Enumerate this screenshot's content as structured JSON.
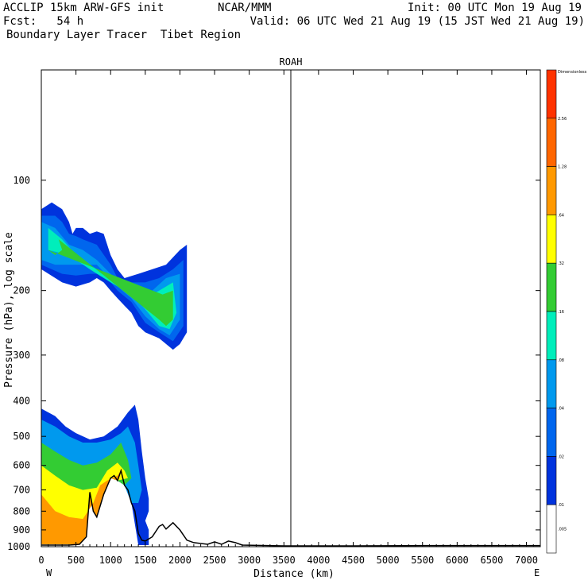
{
  "header": {
    "line1_left": "ACCLIP 15km ARW-GFS init",
    "line1_mid": "NCAR/MMM",
    "line1_right": "Init: 00 UTC Mon 19 Aug 19",
    "line2_left": "Fcst:   54 h",
    "line2_right": "Valid: 06 UTC Wed 21 Aug 19 (15 JST Wed 21 Aug 19)",
    "line3_left": "Boundary Layer Tracer  Tibet Region"
  },
  "chart_data": {
    "type": "contour",
    "title": "ROAH",
    "xlabel": "Distance (km)",
    "ylabel": "Pressure (hPa), log scale",
    "x_ticks": [
      0,
      500,
      1000,
      1500,
      2000,
      2500,
      3000,
      3500,
      4000,
      4500,
      5000,
      5500,
      6000,
      6500,
      7000
    ],
    "xlim": [
      0,
      7200
    ],
    "y_ticks": [
      100,
      200,
      300,
      400,
      500,
      600,
      700,
      800,
      900,
      1000
    ],
    "ylim": [
      1000,
      50
    ],
    "y_scale": "log",
    "left_end_label": "W",
    "right_end_label": "E",
    "vertical_line_x": 3600,
    "colorbar": {
      "top_label": "Dimensionless",
      "labels": [
        "2.56",
        "1.28",
        ".64",
        ".32",
        ".16",
        ".08",
        ".04",
        ".02",
        ".01",
        ".005"
      ],
      "colors": [
        "#ff3300",
        "#ff6600",
        "#ff9900",
        "#ffff00",
        "#33cc33",
        "#00eebb",
        "#0099ee",
        "#0066ee",
        "#0033dd",
        "#ffffff"
      ]
    },
    "terrain": [
      [
        0,
        990
      ],
      [
        400,
        990
      ],
      [
        550,
        985
      ],
      [
        650,
        940
      ],
      [
        700,
        710
      ],
      [
        750,
        800
      ],
      [
        800,
        830
      ],
      [
        900,
        720
      ],
      [
        1000,
        650
      ],
      [
        1050,
        640
      ],
      [
        1100,
        660
      ],
      [
        1150,
        620
      ],
      [
        1200,
        680
      ],
      [
        1250,
        700
      ],
      [
        1300,
        760
      ],
      [
        1350,
        800
      ],
      [
        1400,
        920
      ],
      [
        1450,
        960
      ],
      [
        1500,
        965
      ],
      [
        1600,
        940
      ],
      [
        1700,
        880
      ],
      [
        1750,
        870
      ],
      [
        1800,
        895
      ],
      [
        1900,
        860
      ],
      [
        2000,
        900
      ],
      [
        2100,
        960
      ],
      [
        2200,
        975
      ],
      [
        2400,
        985
      ],
      [
        2500,
        970
      ],
      [
        2600,
        985
      ],
      [
        2700,
        965
      ],
      [
        2800,
        975
      ],
      [
        2900,
        990
      ],
      [
        3500,
        995
      ],
      [
        4500,
        995
      ],
      [
        5500,
        993
      ],
      [
        7200,
        993
      ]
    ],
    "plumes": [
      {
        "level": ".01",
        "polygon": [
          [
            0,
            120
          ],
          [
            150,
            115
          ],
          [
            300,
            120
          ],
          [
            400,
            130
          ],
          [
            450,
            140
          ],
          [
            500,
            135
          ],
          [
            600,
            135
          ],
          [
            700,
            140
          ],
          [
            800,
            138
          ],
          [
            900,
            140
          ],
          [
            1000,
            160
          ],
          [
            1100,
            175
          ],
          [
            1200,
            185
          ],
          [
            1400,
            180
          ],
          [
            1600,
            175
          ],
          [
            1800,
            170
          ],
          [
            2000,
            155
          ],
          [
            2100,
            150
          ],
          [
            2100,
            260
          ],
          [
            2000,
            280
          ],
          [
            1900,
            290
          ],
          [
            1700,
            270
          ],
          [
            1500,
            260
          ],
          [
            1400,
            250
          ],
          [
            1300,
            230
          ],
          [
            1200,
            220
          ],
          [
            1100,
            210
          ],
          [
            1000,
            200
          ],
          [
            900,
            190
          ],
          [
            800,
            185
          ],
          [
            700,
            190
          ],
          [
            500,
            195
          ],
          [
            300,
            190
          ],
          [
            0,
            175
          ]
        ]
      },
      {
        "level": ".02",
        "polygon": [
          [
            0,
            125
          ],
          [
            200,
            125
          ],
          [
            300,
            130
          ],
          [
            400,
            140
          ],
          [
            500,
            142
          ],
          [
            600,
            145
          ],
          [
            800,
            150
          ],
          [
            1000,
            170
          ],
          [
            1100,
            185
          ],
          [
            1300,
            190
          ],
          [
            1500,
            190
          ],
          [
            1700,
            185
          ],
          [
            1900,
            175
          ],
          [
            2050,
            165
          ],
          [
            2050,
            250
          ],
          [
            1900,
            275
          ],
          [
            1700,
            260
          ],
          [
            1500,
            245
          ],
          [
            1300,
            215
          ],
          [
            1100,
            200
          ],
          [
            900,
            180
          ],
          [
            700,
            180
          ],
          [
            500,
            182
          ],
          [
            300,
            180
          ],
          [
            0,
            170
          ]
        ]
      },
      {
        "level": ".04",
        "polygon": [
          [
            0,
            130
          ],
          [
            200,
            135
          ],
          [
            400,
            150
          ],
          [
            600,
            155
          ],
          [
            800,
            165
          ],
          [
            1000,
            180
          ],
          [
            1200,
            195
          ],
          [
            1400,
            200
          ],
          [
            1600,
            200
          ],
          [
            1800,
            185
          ],
          [
            2000,
            180
          ],
          [
            2000,
            240
          ],
          [
            1850,
            265
          ],
          [
            1700,
            255
          ],
          [
            1500,
            235
          ],
          [
            1300,
            210
          ],
          [
            1100,
            195
          ],
          [
            800,
            170
          ],
          [
            500,
            170
          ],
          [
            200,
            170
          ],
          [
            0,
            165
          ]
        ]
      },
      {
        "level": ".08",
        "polygon": [
          [
            100,
            135
          ],
          [
            300,
            145
          ],
          [
            500,
            160
          ],
          [
            700,
            170
          ],
          [
            900,
            180
          ],
          [
            1200,
            200
          ],
          [
            1500,
            210
          ],
          [
            1700,
            200
          ],
          [
            1900,
            190
          ],
          [
            1950,
            230
          ],
          [
            1850,
            255
          ],
          [
            1700,
            250
          ],
          [
            1500,
            225
          ],
          [
            1300,
            205
          ],
          [
            1000,
            190
          ],
          [
            700,
            175
          ],
          [
            400,
            160
          ],
          [
            100,
            155
          ]
        ]
      },
      {
        "level": ".16",
        "polygon": [
          [
            150,
            140
          ],
          [
            250,
            145
          ],
          [
            300,
            155
          ],
          [
            200,
            160
          ],
          [
            100,
            155
          ],
          [
            1750,
            205
          ],
          [
            1900,
            200
          ],
          [
            1900,
            240
          ],
          [
            1800,
            250
          ],
          [
            1700,
            240
          ]
        ]
      },
      {
        "level": ".01",
        "polygon": [
          [
            0,
            420
          ],
          [
            200,
            440
          ],
          [
            350,
            470
          ],
          [
            500,
            490
          ],
          [
            700,
            510
          ],
          [
            900,
            500
          ],
          [
            1100,
            470
          ],
          [
            1250,
            430
          ],
          [
            1350,
            410
          ],
          [
            1400,
            450
          ],
          [
            1450,
            550
          ],
          [
            1500,
            650
          ],
          [
            1550,
            740
          ],
          [
            1550,
            800
          ],
          [
            1500,
            850
          ],
          [
            1550,
            900
          ],
          [
            1550,
            990
          ],
          [
            1400,
            990
          ],
          [
            1300,
            760
          ],
          [
            1200,
            680
          ],
          [
            1100,
            660
          ],
          [
            1000,
            650
          ],
          [
            900,
            720
          ],
          [
            800,
            830
          ],
          [
            750,
            800
          ],
          [
            700,
            710
          ],
          [
            650,
            940
          ],
          [
            550,
            985
          ],
          [
            0,
            985
          ]
        ]
      },
      {
        "level": ".04",
        "polygon": [
          [
            0,
            450
          ],
          [
            200,
            470
          ],
          [
            400,
            500
          ],
          [
            600,
            520
          ],
          [
            800,
            520
          ],
          [
            1000,
            510
          ],
          [
            1150,
            490
          ],
          [
            1250,
            470
          ],
          [
            1350,
            520
          ],
          [
            1400,
            600
          ],
          [
            1450,
            700
          ],
          [
            1400,
            760
          ],
          [
            1300,
            760
          ],
          [
            1200,
            680
          ],
          [
            1100,
            660
          ],
          [
            1000,
            650
          ],
          [
            900,
            720
          ],
          [
            800,
            830
          ],
          [
            750,
            800
          ],
          [
            700,
            710
          ],
          [
            650,
            940
          ],
          [
            550,
            985
          ],
          [
            0,
            985
          ]
        ]
      },
      {
        "level": ".16",
        "polygon": [
          [
            0,
            520
          ],
          [
            200,
            550
          ],
          [
            400,
            580
          ],
          [
            600,
            600
          ],
          [
            800,
            590
          ],
          [
            1000,
            560
          ],
          [
            1150,
            520
          ],
          [
            1250,
            580
          ],
          [
            1300,
            650
          ],
          [
            1200,
            680
          ],
          [
            1100,
            660
          ],
          [
            1000,
            650
          ],
          [
            900,
            720
          ],
          [
            800,
            830
          ],
          [
            750,
            800
          ],
          [
            700,
            710
          ],
          [
            650,
            940
          ],
          [
            550,
            985
          ],
          [
            0,
            985
          ]
        ]
      },
      {
        "level": ".32",
        "polygon": [
          [
            0,
            600
          ],
          [
            200,
            640
          ],
          [
            400,
            680
          ],
          [
            600,
            700
          ],
          [
            800,
            690
          ],
          [
            950,
            620
          ],
          [
            1100,
            590
          ],
          [
            1200,
            620
          ],
          [
            1250,
            650
          ],
          [
            1100,
            660
          ],
          [
            1000,
            650
          ],
          [
            900,
            720
          ],
          [
            800,
            830
          ],
          [
            750,
            800
          ],
          [
            700,
            710
          ],
          [
            650,
            940
          ],
          [
            550,
            985
          ],
          [
            0,
            985
          ]
        ]
      },
      {
        "level": ".64",
        "polygon": [
          [
            0,
            720
          ],
          [
            200,
            800
          ],
          [
            400,
            830
          ],
          [
            600,
            840
          ],
          [
            750,
            760
          ],
          [
            850,
            680
          ],
          [
            950,
            660
          ],
          [
            1100,
            640
          ],
          [
            1150,
            620
          ],
          [
            1100,
            660
          ],
          [
            1000,
            650
          ],
          [
            900,
            720
          ],
          [
            800,
            830
          ],
          [
            750,
            800
          ],
          [
            700,
            710
          ],
          [
            650,
            940
          ],
          [
            550,
            985
          ],
          [
            0,
            985
          ]
        ]
      }
    ]
  }
}
